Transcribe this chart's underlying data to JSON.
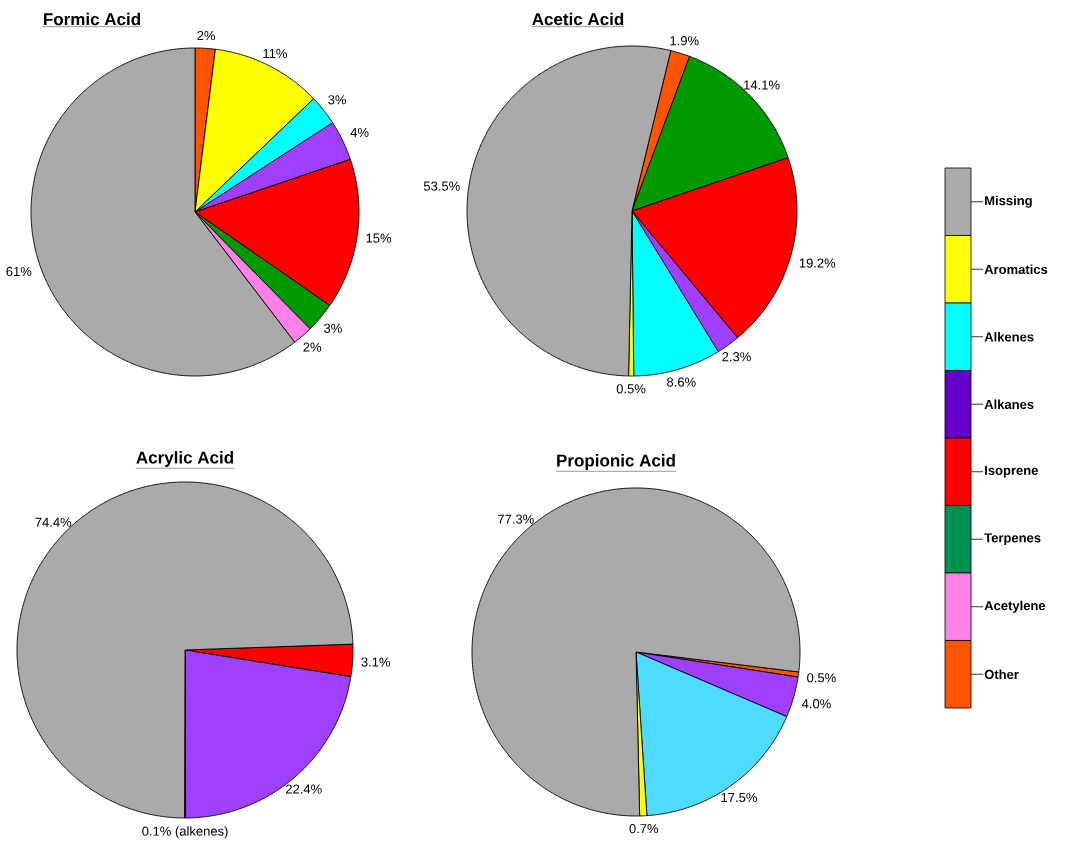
{
  "chart_data": [
    {
      "type": "pie",
      "title": "Formic Acid",
      "values": [
        2,
        11,
        3,
        4,
        15,
        3,
        2,
        61
      ],
      "colors": [
        "#ff5500",
        "#ffff00",
        "#00ffff",
        "#a040ff",
        "#ff0000",
        "#009900",
        "#ff80e8",
        "#aaaaaa"
      ],
      "value_labels": [
        "2%",
        "11%",
        "3%",
        "4%",
        "15%",
        "3%",
        "2%",
        "61%"
      ]
    },
    {
      "type": "pie",
      "title": "Acetic Acid",
      "values": [
        1.9,
        14.1,
        19.2,
        2.3,
        8.6,
        0.5,
        53.5
      ],
      "colors": [
        "#ff5500",
        "#009900",
        "#ff0000",
        "#a040ff",
        "#00ffff",
        "#ffff00",
        "#aaaaaa"
      ],
      "value_labels": [
        "1.9%",
        "14.1%",
        "19.2%",
        "2.3%",
        "8.6%",
        "0.5%",
        "53.5%"
      ]
    },
    {
      "type": "pie",
      "title": "Acrylic Acid",
      "values": [
        3.1,
        22.4,
        0.1,
        74.4
      ],
      "colors": [
        "#ff0000",
        "#a040ff",
        "#00ffff",
        "#aaaaaa"
      ],
      "value_labels": [
        "3.1%",
        "22.4%",
        "0.1% (alkenes)",
        "74.4%"
      ]
    },
    {
      "type": "pie",
      "title": "Propionic Acid",
      "values": [
        0.5,
        4.0,
        17.5,
        0.7,
        77.3
      ],
      "colors": [
        "#ff5500",
        "#a040ff",
        "#4ddbff",
        "#ffff00",
        "#aaaaaa"
      ],
      "value_labels": [
        "0.5%",
        "4.0%",
        "17.5%",
        "0.7%",
        "77.3%"
      ]
    },
    {
      "type": "other",
      "categories": [
        "Missing",
        "Aromatics",
        "Alkenes",
        "Alkanes",
        "Isoprene",
        "Terpenes",
        "Acetylene",
        "Other"
      ],
      "colors": [
        "#aaaaaa",
        "#ffff00",
        "#00ffff",
        "#6600cc",
        "#ff0000",
        "#009050",
        "#ff80e8",
        "#ff5500"
      ]
    }
  ]
}
